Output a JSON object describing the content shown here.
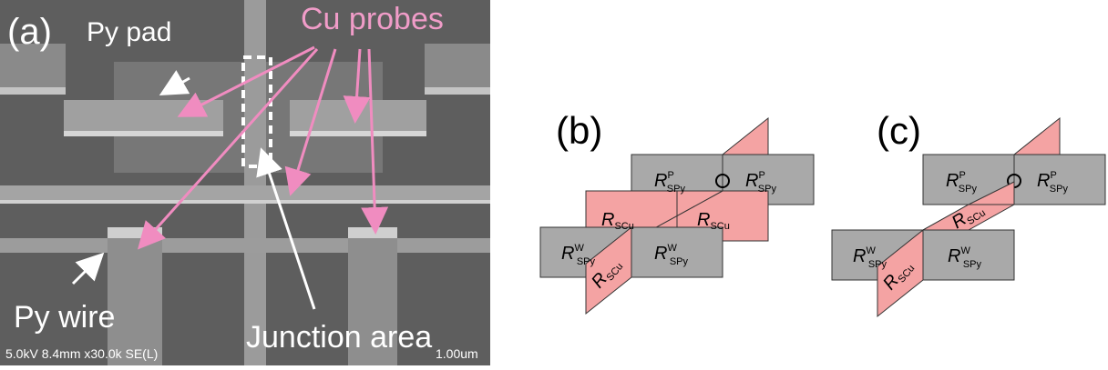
{
  "panel_a": {
    "label": "(a)",
    "annotations": {
      "cu_probes": "Cu probes",
      "py_pad": "Py pad",
      "py_wire": "Py wire",
      "junction_area": "Junction area"
    },
    "sem_info": "5.0kV 8.4mm x30.0k SE(L)",
    "scale_bar": "1.00um"
  },
  "panel_b": {
    "label": "(b)",
    "blocks": [
      {
        "symbol": "R",
        "superscript": "P",
        "subscript": "SPy"
      },
      {
        "symbol": "R",
        "superscript": "P",
        "subscript": "SPy"
      },
      {
        "symbol": "R",
        "subscript": "SCu"
      },
      {
        "symbol": "R",
        "subscript": "SCu"
      },
      {
        "symbol": "R",
        "superscript": "W",
        "subscript": "SPy"
      },
      {
        "symbol": "R",
        "superscript": "W",
        "subscript": "SPy"
      },
      {
        "symbol": "R",
        "subscript": "SCu"
      }
    ]
  },
  "panel_c": {
    "label": "(c)",
    "blocks": [
      {
        "symbol": "R",
        "superscript": "P",
        "subscript": "SPy"
      },
      {
        "symbol": "R",
        "superscript": "P",
        "subscript": "SPy"
      },
      {
        "symbol": "R",
        "subscript": "SCu"
      },
      {
        "symbol": "R",
        "superscript": "W",
        "subscript": "SPy"
      },
      {
        "symbol": "R",
        "superscript": "W",
        "subscript": "SPy"
      },
      {
        "symbol": "R",
        "subscript": "SCu"
      }
    ]
  }
}
